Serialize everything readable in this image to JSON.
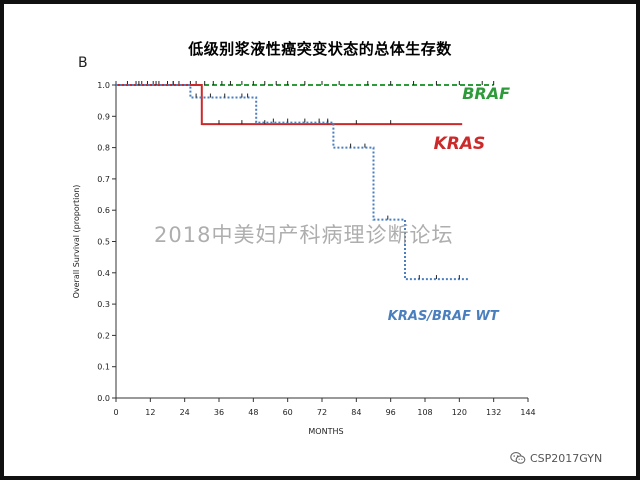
{
  "slide": {
    "title": "低级别浆液性癌突变状态的总体生存数",
    "panel_label": "B",
    "watermark": "2018中美妇产科病理诊断论坛",
    "credit": "CSP2017GYN",
    "credit_icon": "wechat-icon"
  },
  "chart_data": {
    "type": "line",
    "subtype": "kaplan-meier-step",
    "xlabel": "MONTHS",
    "ylabel": "Overall Survival (proportion)",
    "xlim": [
      0,
      144
    ],
    "ylim": [
      0,
      1
    ],
    "x_ticks": [
      0,
      12,
      24,
      36,
      48,
      60,
      72,
      84,
      96,
      108,
      120,
      132,
      144
    ],
    "y_ticks": [
      0.0,
      0.1,
      0.2,
      0.3,
      0.4,
      0.5,
      0.6,
      0.7,
      0.8,
      0.9,
      1.0
    ],
    "x_tick_labels": [
      "0",
      "12",
      "24",
      "36",
      "48",
      "60",
      "72",
      "84",
      "96",
      "108",
      "120",
      "132",
      "144"
    ],
    "y_tick_labels": [
      "0.0",
      "0.1",
      "0.2",
      "0.3",
      "0.4",
      "0.5",
      "0.6",
      "0.7",
      "0.8",
      "0.9",
      "1.0"
    ],
    "grid": false,
    "series": [
      {
        "name": "BRAF",
        "color": "#2e9b3a",
        "style": "dashed",
        "points": [
          [
            0,
            1.0
          ],
          [
            132,
            1.0
          ]
        ],
        "censored": [
          4,
          7,
          9,
          11,
          13,
          15,
          18,
          20,
          22,
          26,
          28,
          31,
          34,
          37,
          40,
          44,
          48,
          52,
          56,
          60,
          66,
          72,
          78,
          88,
          96,
          104,
          112,
          120,
          128,
          132
        ]
      },
      {
        "name": "KRAS",
        "color": "#cc2a2a",
        "style": "solid",
        "points": [
          [
            0,
            1.0
          ],
          [
            30,
            1.0
          ],
          [
            30,
            0.875
          ],
          [
            121,
            0.875
          ]
        ],
        "censored": [
          36,
          44,
          52,
          74,
          84,
          96
        ]
      },
      {
        "name": "KRAS/BRAF WT",
        "color": "#4a7fbf",
        "style": "dotted",
        "points": [
          [
            0,
            1.0
          ],
          [
            26,
            1.0
          ],
          [
            26,
            0.96
          ],
          [
            49,
            0.96
          ],
          [
            49,
            0.88
          ],
          [
            76,
            0.88
          ],
          [
            76,
            0.8
          ],
          [
            90,
            0.8
          ],
          [
            90,
            0.57
          ],
          [
            101,
            0.57
          ],
          [
            101,
            0.38
          ],
          [
            123,
            0.38
          ]
        ],
        "censored": [
          8,
          14,
          20,
          28,
          33,
          38,
          44,
          46,
          55,
          60,
          66,
          71,
          74,
          82,
          87,
          95,
          106,
          112,
          120
        ]
      }
    ],
    "series_labels": [
      {
        "text": "BRAF",
        "color": "#2e9b3a",
        "at": [
          121,
          0.955
        ],
        "size": 16
      },
      {
        "text": "KRAS",
        "color": "#cc2a2a",
        "at": [
          111,
          0.795
        ],
        "size": 17
      },
      {
        "text": "KRAS/BRAF WT",
        "color": "#4a7fbf",
        "at": [
          95,
          0.25
        ],
        "size": 13
      }
    ]
  }
}
